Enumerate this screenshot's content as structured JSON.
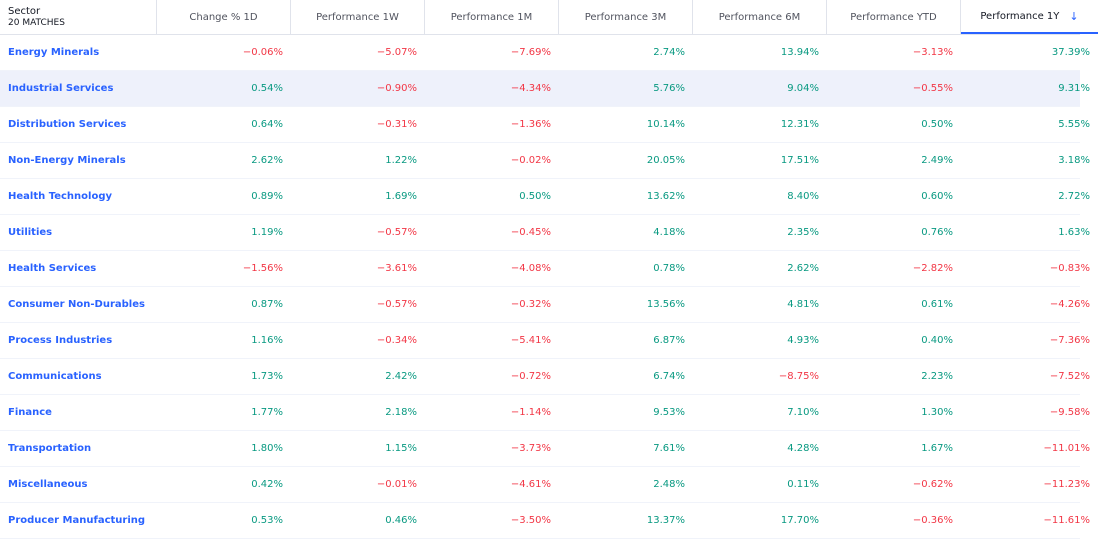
{
  "table": {
    "first_col_title": "Sector",
    "match_count": "20 MATCHES",
    "columns": [
      {
        "label": "Change % 1D",
        "sorted": false
      },
      {
        "label": "Performance 1W",
        "sorted": false
      },
      {
        "label": "Performance 1M",
        "sorted": false
      },
      {
        "label": "Performance 3M",
        "sorted": false
      },
      {
        "label": "Performance 6M",
        "sorted": false
      },
      {
        "label": "Performance YTD",
        "sorted": false
      },
      {
        "label": "Performance 1Y",
        "sorted": true
      }
    ],
    "sort_icon": "arrow-down-icon",
    "sort_glyph": "↓",
    "highlight_row_index": 1,
    "colors": {
      "positive": "#089981",
      "negative": "#f23645",
      "link": "#2962ff",
      "highlight": "#eef1fb"
    },
    "rows": [
      {
        "name": "Energy Minerals",
        "values": [
          "−0.06%",
          "−5.07%",
          "−7.69%",
          "2.74%",
          "13.94%",
          "−3.13%",
          "37.39%"
        ]
      },
      {
        "name": "Industrial Services",
        "values": [
          "0.54%",
          "−0.90%",
          "−4.34%",
          "5.76%",
          "9.04%",
          "−0.55%",
          "9.31%"
        ]
      },
      {
        "name": "Distribution Services",
        "values": [
          "0.64%",
          "−0.31%",
          "−1.36%",
          "10.14%",
          "12.31%",
          "0.50%",
          "5.55%"
        ]
      },
      {
        "name": "Non-Energy Minerals",
        "values": [
          "2.62%",
          "1.22%",
          "−0.02%",
          "20.05%",
          "17.51%",
          "2.49%",
          "3.18%"
        ]
      },
      {
        "name": "Health Technology",
        "values": [
          "0.89%",
          "1.69%",
          "0.50%",
          "13.62%",
          "8.40%",
          "0.60%",
          "2.72%"
        ]
      },
      {
        "name": "Utilities",
        "values": [
          "1.19%",
          "−0.57%",
          "−0.45%",
          "4.18%",
          "2.35%",
          "0.76%",
          "1.63%"
        ]
      },
      {
        "name": "Health Services",
        "values": [
          "−1.56%",
          "−3.61%",
          "−4.08%",
          "0.78%",
          "2.62%",
          "−2.82%",
          "−0.83%"
        ]
      },
      {
        "name": "Consumer Non-Durables",
        "values": [
          "0.87%",
          "−0.57%",
          "−0.32%",
          "13.56%",
          "4.81%",
          "0.61%",
          "−4.26%"
        ]
      },
      {
        "name": "Process Industries",
        "values": [
          "1.16%",
          "−0.34%",
          "−5.41%",
          "6.87%",
          "4.93%",
          "0.40%",
          "−7.36%"
        ]
      },
      {
        "name": "Communications",
        "values": [
          "1.73%",
          "2.42%",
          "−0.72%",
          "6.74%",
          "−8.75%",
          "2.23%",
          "−7.52%"
        ]
      },
      {
        "name": "Finance",
        "values": [
          "1.77%",
          "2.18%",
          "−1.14%",
          "9.53%",
          "7.10%",
          "1.30%",
          "−9.58%"
        ]
      },
      {
        "name": "Transportation",
        "values": [
          "1.80%",
          "1.15%",
          "−3.73%",
          "7.61%",
          "4.28%",
          "1.67%",
          "−11.01%"
        ]
      },
      {
        "name": "Miscellaneous",
        "values": [
          "0.42%",
          "−0.01%",
          "−4.61%",
          "2.48%",
          "0.11%",
          "−0.62%",
          "−11.23%"
        ]
      },
      {
        "name": "Producer Manufacturing",
        "values": [
          "0.53%",
          "0.46%",
          "−3.50%",
          "13.37%",
          "17.70%",
          "−0.36%",
          "−11.61%"
        ]
      }
    ]
  }
}
